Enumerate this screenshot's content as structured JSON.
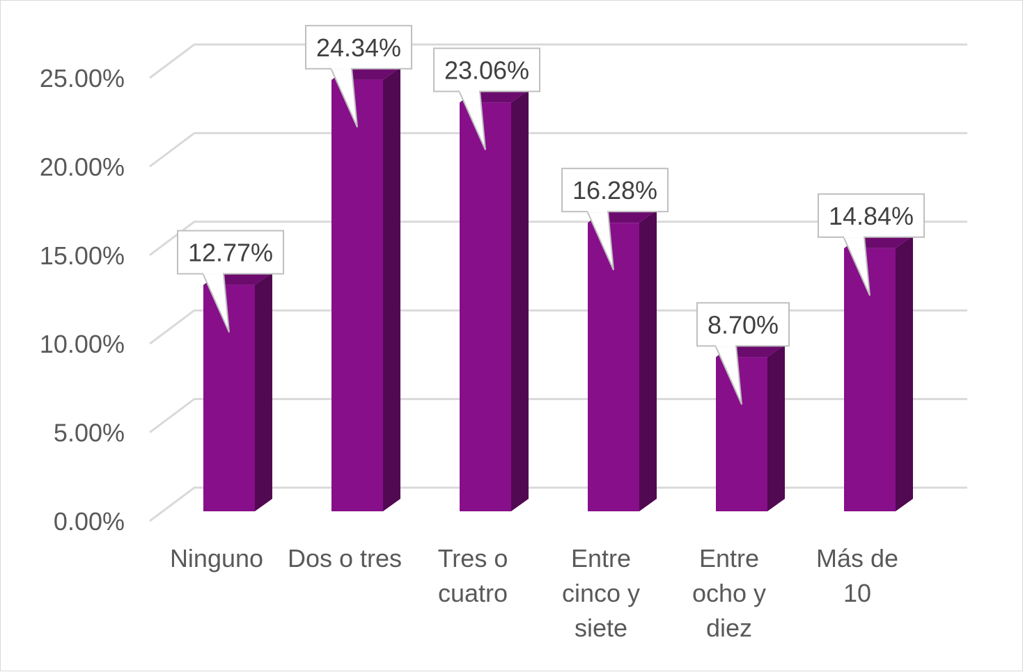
{
  "chart_data": {
    "type": "bar",
    "style": "3d-clustered-column",
    "categories": [
      [
        "Ninguno"
      ],
      [
        "Dos o tres"
      ],
      [
        "Tres o",
        "cuatro"
      ],
      [
        "Entre",
        "cinco y",
        "siete"
      ],
      [
        "Entre",
        "ocho y",
        "diez"
      ],
      [
        "Más de",
        "10"
      ]
    ],
    "values": [
      12.77,
      24.34,
      23.06,
      16.28,
      8.7,
      14.84
    ],
    "data_labels": [
      "12.77%",
      "24.34%",
      "23.06%",
      "16.28%",
      "8.70%",
      "14.84%"
    ],
    "y_ticks": [
      "0.00%",
      "5.00%",
      "10.00%",
      "15.00%",
      "20.00%",
      "25.00%"
    ],
    "ylim": [
      0,
      25
    ],
    "title": "",
    "xlabel": "",
    "ylabel": "",
    "grid": true,
    "legend": "none",
    "colors": {
      "bar_front": "#870f8a",
      "bar_side": "#510951",
      "bar_top": "#6c0b6e",
      "grid": "#d9d9d9",
      "text": "#595959",
      "label_border": "#bfbfbf"
    }
  }
}
